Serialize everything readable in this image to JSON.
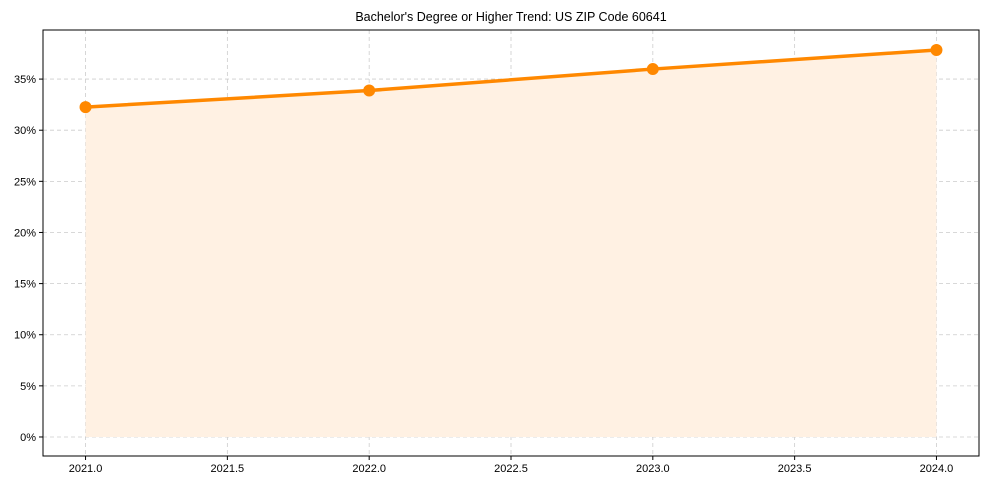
{
  "chart_data": {
    "type": "line",
    "title": "Bachelor's Degree or Higher Trend: US ZIP Code 60641",
    "xlabel": "",
    "ylabel": "",
    "x": [
      2021,
      2022,
      2023,
      2024
    ],
    "values": [
      32.26,
      33.88,
      35.98,
      37.84
    ],
    "series": [
      {
        "name": "Bachelor's Degree or Higher",
        "values": [
          32.26,
          33.88,
          35.98,
          37.84
        ]
      }
    ],
    "xlim": [
      2020.85,
      2024.15
    ],
    "ylim": [
      -1.86,
      39.8
    ],
    "xticks": [
      "2021.0",
      "2021.5",
      "2022.0",
      "2022.5",
      "2023.0",
      "2023.5",
      "2024.0"
    ],
    "xtick_values": [
      2021,
      2021.5,
      2022,
      2022.5,
      2023,
      2023.5,
      2024
    ],
    "yticks": [
      "0%",
      "5%",
      "10%",
      "15%",
      "20%",
      "25%",
      "30%",
      "35%"
    ],
    "ytick_values": [
      0,
      5,
      10,
      15,
      20,
      25,
      30,
      35
    ],
    "grid": true,
    "legend": "none",
    "line_color": "#ff8800",
    "fill_color": "#fff1e3",
    "fill_area": true
  }
}
